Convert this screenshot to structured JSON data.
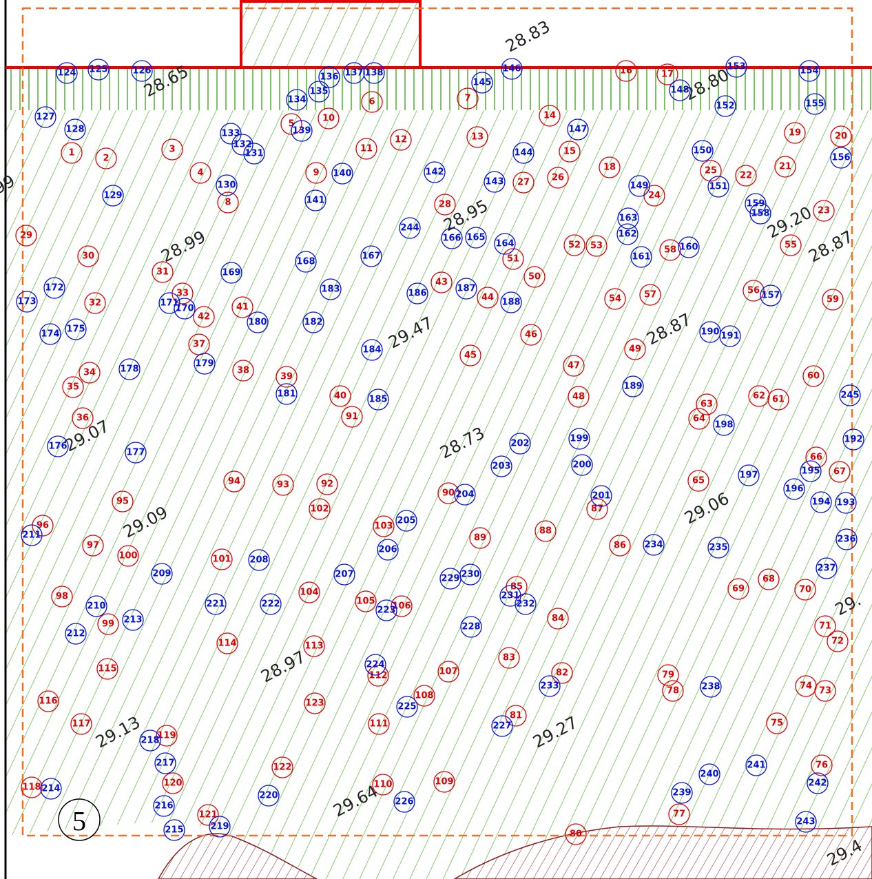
{
  "map": {
    "sheet_number": "5",
    "red_points": [
      "1",
      "2",
      "3",
      "4",
      "5",
      "6",
      "7",
      "8",
      "9",
      "10",
      "11",
      "12",
      "13",
      "14",
      "15",
      "16",
      "17",
      "18",
      "19",
      "20",
      "21",
      "22",
      "23",
      "24",
      "25",
      "26",
      "27",
      "28",
      "29",
      "30",
      "31",
      "32",
      "33",
      "34",
      "35",
      "36",
      "37",
      "38",
      "39",
      "40",
      "41",
      "42",
      "43",
      "44",
      "45",
      "46",
      "47",
      "48",
      "49",
      "50",
      "51",
      "52",
      "53",
      "54",
      "55",
      "56",
      "57",
      "58",
      "59",
      "60",
      "61",
      "62",
      "63",
      "64",
      "65",
      "66",
      "67",
      "68",
      "69",
      "70",
      "71",
      "72",
      "73",
      "74",
      "75",
      "76",
      "77",
      "78",
      "79",
      "80",
      "81",
      "82",
      "83",
      "84",
      "85",
      "86",
      "87",
      "88",
      "89",
      "90",
      "91",
      "92",
      "93",
      "94",
      "95",
      "96",
      "97",
      "98",
      "99",
      "100",
      "101",
      "102",
      "103",
      "104",
      "105",
      "106",
      "107",
      "108",
      "109",
      "110",
      "111",
      "112",
      "113",
      "114",
      "115",
      "116",
      "117",
      "118",
      "119",
      "120",
      "121",
      "122",
      "123"
    ],
    "blue_points": [
      "124",
      "125",
      "126",
      "127",
      "128",
      "129",
      "130",
      "131",
      "132",
      "133",
      "134",
      "135",
      "136",
      "137",
      "138",
      "139",
      "140",
      "141",
      "142",
      "143",
      "144",
      "145",
      "146",
      "147",
      "148",
      "149",
      "150",
      "151",
      "152",
      "153",
      "154",
      "155",
      "156",
      "157",
      "158",
      "159",
      "160",
      "161",
      "162",
      "163",
      "164",
      "165",
      "166",
      "167",
      "168",
      "169",
      "170",
      "171",
      "172",
      "173",
      "174",
      "175",
      "176",
      "177",
      "178",
      "179",
      "180",
      "181",
      "182",
      "183",
      "184",
      "185",
      "186",
      "187",
      "188",
      "189",
      "190",
      "191",
      "192",
      "193",
      "194",
      "195",
      "196",
      "197",
      "198",
      "199",
      "200",
      "201",
      "202",
      "203",
      "204",
      "205",
      "206",
      "207",
      "208",
      "209",
      "210",
      "211",
      "212",
      "213",
      "214",
      "215",
      "216",
      "217",
      "218",
      "219",
      "220",
      "221",
      "222",
      "223",
      "224",
      "225",
      "226",
      "227",
      "228",
      "229",
      "230",
      "231",
      "232",
      "233",
      "234",
      "235",
      "236",
      "237",
      "238",
      "239",
      "240",
      "241",
      "242",
      "243",
      "244",
      "245"
    ],
    "elevations": [
      "28.65",
      "28.83",
      "28.80",
      "28.99",
      "28.95",
      "29.47",
      "28.87",
      "29.07",
      "28.73",
      "29.20",
      "28.87",
      "29.09",
      "29.06",
      "28.97",
      "29.13",
      "29.27",
      "29.64",
      "29.4",
      "99",
      "29."
    ]
  }
}
